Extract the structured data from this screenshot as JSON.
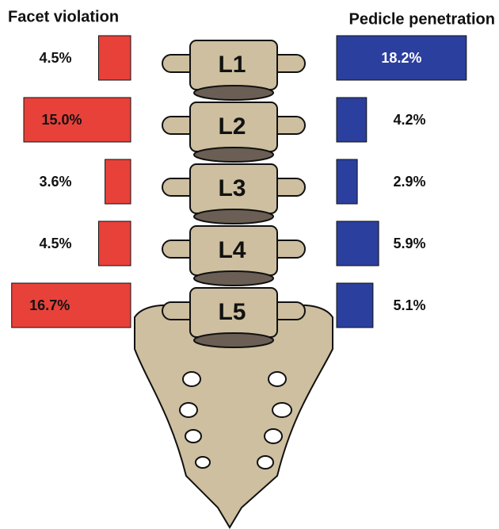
{
  "chart_data": {
    "type": "bar",
    "categories": [
      "L1",
      "L2",
      "L3",
      "L4",
      "L5"
    ],
    "series": [
      {
        "name": "Facet violation",
        "color": "#e8413a",
        "values": [
          4.5,
          15.0,
          3.6,
          4.5,
          16.7
        ],
        "value_labels": [
          "4.5%",
          "15.0%",
          "3.6%",
          "4.5%",
          "16.7%"
        ]
      },
      {
        "name": "Pedicle penetration",
        "color": "#2b3f9e",
        "values": [
          18.2,
          4.2,
          2.9,
          5.9,
          5.1
        ],
        "value_labels": [
          "18.2%",
          "4.2%",
          "2.9%",
          "5.9%",
          "5.1%"
        ]
      }
    ]
  }
}
